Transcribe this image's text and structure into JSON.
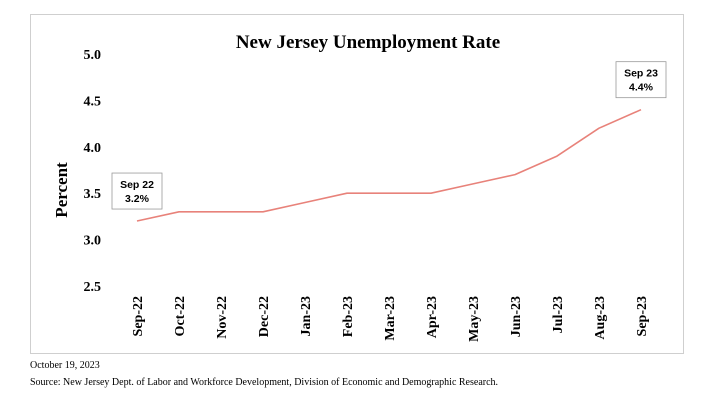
{
  "chart_data": {
    "type": "line",
    "title": "New Jersey Unemployment Rate",
    "ylabel": "Percent",
    "xlabel": "",
    "categories": [
      "Sep-22",
      "Oct-22",
      "Nov-22",
      "Dec-22",
      "Jan-23",
      "Feb-23",
      "Mar-23",
      "Apr-23",
      "May-23",
      "Jun-23",
      "Jul-23",
      "Aug-23",
      "Sep-23"
    ],
    "values": [
      3.2,
      3.3,
      3.3,
      3.3,
      3.4,
      3.5,
      3.5,
      3.5,
      3.6,
      3.7,
      3.9,
      4.2,
      4.4
    ],
    "ylim": [
      2.5,
      5.0
    ],
    "yticks": [
      "2.5",
      "3.0",
      "3.5",
      "4.0",
      "4.5",
      "5.0"
    ],
    "grid": false,
    "line_color": "#e8827a",
    "annotations": [
      {
        "index": 0,
        "line1": "Sep 22",
        "line2": "3.2%"
      },
      {
        "index": 12,
        "line1": "Sep 23",
        "line2": "4.4%"
      }
    ]
  },
  "footer": {
    "date": "October 19, 2023",
    "source": "Source: New Jersey Dept. of Labor and Workforce Development, Division of Economic and Demographic Research."
  }
}
